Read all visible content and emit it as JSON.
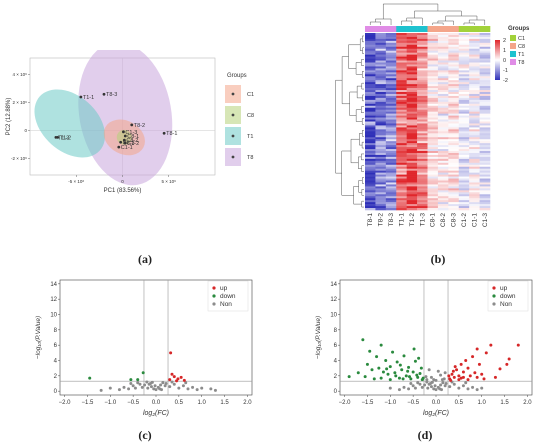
{
  "captions": {
    "a": "(a)",
    "b": "(b)",
    "c": "(c)",
    "d": "(d)"
  },
  "chart_data": [
    {
      "id": "pca",
      "type": "scatter",
      "title": "",
      "xlabel": "PC1 (83.56%)",
      "ylabel": "PC2 (12.88%)",
      "xlim": [
        -1.0,
        1.0
      ],
      "ylim": [
        -3.2,
        5.2
      ],
      "xtick_labels": [
        "-5 × 10⁶",
        "0",
        "5 × 10⁶"
      ],
      "xtick_values": [
        -0.5,
        0,
        0.5
      ],
      "ytick_labels": [
        "-2 × 10⁶",
        "0",
        "2 × 10⁶",
        "4 × 10⁶"
      ],
      "ytick_values": [
        -2,
        0,
        2,
        4
      ],
      "legend_title": "Groups",
      "legend_position": "right",
      "series": [
        {
          "name": "C1",
          "color": "#f4a58a",
          "ellipse": {
            "cx": 0.02,
            "cy": -0.5,
            "rx": 0.18,
            "ry": 1.55,
            "angle": 62
          },
          "points": [
            {
              "x": 0.01,
              "y": -0.1,
              "label": "C1-3"
            },
            {
              "x": -0.04,
              "y": -1.2,
              "label": "C1-1"
            },
            {
              "x": 0.03,
              "y": -0.9,
              "label": "C1-2"
            }
          ]
        },
        {
          "name": "C8",
          "color": "#b7d27a",
          "ellipse": {
            "cx": 0.02,
            "cy": -0.5,
            "rx": 0.08,
            "ry": 0.55,
            "angle": 55
          },
          "points": [
            {
              "x": 0.03,
              "y": -0.4,
              "label": "C8-1"
            },
            {
              "x": 0.02,
              "y": -0.7,
              "label": "C8-2"
            },
            {
              "x": -0.02,
              "y": -0.85,
              "label": "C8-3"
            }
          ]
        },
        {
          "name": "T1",
          "color": "#6dcac6",
          "ellipse": {
            "cx": -0.57,
            "cy": 0.5,
            "rx": 0.3,
            "ry": 2.9,
            "angle": 48
          },
          "points": [
            {
              "x": -0.45,
              "y": 2.4,
              "label": "T1-1"
            },
            {
              "x": -0.7,
              "y": -0.5,
              "label": "T1-2"
            },
            {
              "x": -0.72,
              "y": -0.5,
              "label": "T1-3"
            }
          ]
        },
        {
          "name": "T8",
          "color": "#c9a6dd",
          "ellipse": {
            "cx": 0.03,
            "cy": 1.2,
            "rx": 0.78,
            "ry": 3.3,
            "angle": -80
          },
          "points": [
            {
              "x": -0.2,
              "y": 2.6,
              "label": "T8-3"
            },
            {
              "x": 0.1,
              "y": 0.4,
              "label": "T8-2"
            },
            {
              "x": 0.45,
              "y": -0.2,
              "label": "T8-1"
            }
          ]
        }
      ]
    },
    {
      "id": "heatmap",
      "type": "heatmap",
      "title": "",
      "columns": [
        "T8-1",
        "T8-2",
        "T8-3",
        "T1-1",
        "T1-2",
        "T1-3",
        "C8-1",
        "C8-2",
        "C8-3",
        "C1-2",
        "C1-1",
        "C1-3"
      ],
      "col_groups": [
        "T8",
        "T8",
        "T8",
        "T1",
        "T1",
        "T1",
        "C8",
        "C8",
        "C8",
        "C1",
        "C1",
        "C1"
      ],
      "group_colors": {
        "C1": "#a2d23a",
        "C8": "#f4a58a",
        "T1": "#1ec2cf",
        "T8": "#e08ce6"
      },
      "legend_title": "Groups",
      "legend_groups": [
        "C1",
        "C8",
        "T1",
        "T8"
      ],
      "colorbar_ticks": [
        "2",
        "1",
        "0",
        "-1",
        "-2"
      ],
      "colorbar_values": [
        2,
        1,
        0,
        -1,
        -2
      ],
      "color_low": "#2e2fb8",
      "color_mid": "#ffffff",
      "color_high": "#e0262b",
      "column_mean_pattern": [
        -1.6,
        -1.3,
        -1.1,
        1.5,
        1.8,
        1.2,
        0.3,
        0.1,
        0.2,
        -0.2,
        0.0,
        -0.3
      ],
      "row_count": 90
    },
    {
      "id": "volcano-c",
      "type": "scatter",
      "title": "",
      "xlabel": "log₂(FC)",
      "ylabel": "−log₁₀(P.Value)",
      "xlim": [
        -2.1,
        2.1
      ],
      "ylim": [
        -0.5,
        14.5
      ],
      "xtick_values": [
        -2.0,
        -1.5,
        -1.0,
        -0.5,
        0.0,
        0.5,
        1.0,
        1.5,
        2.0
      ],
      "xtick_labels": [
        "−2.0",
        "−1.5",
        "−1.0",
        "−0.5",
        "0.0",
        "0.5",
        "1.0",
        "1.5",
        "2.0"
      ],
      "ytick_values": [
        0,
        2,
        4,
        6,
        8,
        10,
        12,
        14
      ],
      "ytick_labels": [
        "0",
        "2",
        "4",
        "6",
        "8",
        "10",
        "12",
        "14"
      ],
      "vlines": [
        -0.263,
        0.263
      ],
      "hline": 1.3,
      "legend_position": "top-right",
      "series": [
        {
          "name": "up",
          "color": "#d62728",
          "points": [
            [
              0.32,
              5.0
            ],
            [
              0.35,
              2.2
            ],
            [
              0.4,
              1.9
            ],
            [
              0.48,
              1.6
            ],
            [
              0.55,
              1.8
            ],
            [
              0.3,
              1.5
            ],
            [
              0.62,
              1.4
            ],
            [
              0.45,
              1.35
            ]
          ]
        },
        {
          "name": "down",
          "color": "#2a8a3e",
          "points": [
            [
              -1.45,
              1.7
            ],
            [
              -0.28,
              2.4
            ],
            [
              -0.55,
              1.5
            ],
            [
              -0.4,
              1.5
            ]
          ]
        },
        {
          "name": "Non",
          "color": "#8c8c8c",
          "points": [
            [
              -0.2,
              1.2
            ],
            [
              -0.15,
              0.9
            ],
            [
              -0.1,
              0.6
            ],
            [
              -0.05,
              0.3
            ],
            [
              0.0,
              0.2
            ],
            [
              0.05,
              0.5
            ],
            [
              0.1,
              0.8
            ],
            [
              0.15,
              1.1
            ],
            [
              0.2,
              0.7
            ],
            [
              -0.25,
              0.8
            ],
            [
              -0.3,
              0.5
            ],
            [
              -0.35,
              0.9
            ],
            [
              -0.45,
              0.4
            ],
            [
              -0.5,
              0.7
            ],
            [
              -0.6,
              0.3
            ],
            [
              -0.7,
              0.5
            ],
            [
              -0.8,
              0.2
            ],
            [
              -1.0,
              0.4
            ],
            [
              -1.2,
              0.1
            ],
            [
              0.3,
              0.6
            ],
            [
              0.4,
              0.9
            ],
            [
              0.5,
              0.4
            ],
            [
              0.6,
              0.7
            ],
            [
              0.7,
              0.3
            ],
            [
              0.8,
              0.5
            ],
            [
              0.9,
              0.2
            ],
            [
              1.0,
              0.4
            ],
            [
              1.2,
              0.3
            ],
            [
              1.3,
              0.1
            ],
            [
              -0.12,
              1.0
            ],
            [
              0.08,
              0.3
            ],
            [
              -0.08,
              1.15
            ],
            [
              0.22,
              1.0
            ],
            [
              -0.18,
              0.4
            ],
            [
              0.12,
              0.2
            ],
            [
              0.35,
              1.2
            ],
            [
              -0.4,
              1.1
            ],
            [
              -0.55,
              1.0
            ],
            [
              0.65,
              1.1
            ],
            [
              -0.02,
              0.7
            ]
          ]
        }
      ]
    },
    {
      "id": "volcano-d",
      "type": "scatter",
      "title": "",
      "xlabel": "log₂(FC)",
      "ylabel": "−log₁₀(P.Value)",
      "xlim": [
        -2.1,
        2.1
      ],
      "ylim": [
        -0.5,
        14.5
      ],
      "xtick_values": [
        -2.0,
        -1.5,
        -1.0,
        -0.5,
        0.0,
        0.5,
        1.0,
        1.5,
        2.0
      ],
      "xtick_labels": [
        "−2.0",
        "−1.5",
        "−1.0",
        "−0.5",
        "0.0",
        "0.5",
        "1.0",
        "1.5",
        "2.0"
      ],
      "ytick_values": [
        0,
        2,
        4,
        6,
        8,
        10,
        12,
        14
      ],
      "ytick_labels": [
        "0",
        "2",
        "4",
        "6",
        "8",
        "10",
        "12",
        "14"
      ],
      "vlines": [
        -0.263,
        0.263
      ],
      "hline": 1.3,
      "legend_position": "top-right",
      "series": [
        {
          "name": "up",
          "color": "#d62728",
          "points": [
            [
              1.8,
              6.0
            ],
            [
              1.6,
              4.2
            ],
            [
              1.55,
              3.5
            ],
            [
              1.2,
              6.0
            ],
            [
              1.1,
              5.0
            ],
            [
              0.9,
              5.5
            ],
            [
              0.95,
              3.5
            ],
            [
              0.8,
              4.5
            ],
            [
              0.7,
              3.0
            ],
            [
              0.65,
              4.0
            ],
            [
              0.6,
              2.5
            ],
            [
              0.55,
              3.5
            ],
            [
              0.5,
              2.0
            ],
            [
              0.45,
              2.8
            ],
            [
              0.4,
              1.8
            ],
            [
              0.35,
              2.2
            ],
            [
              0.3,
              1.6
            ],
            [
              0.28,
              2.0
            ],
            [
              0.32,
              1.4
            ],
            [
              0.5,
              1.5
            ],
            [
              0.6,
              1.8
            ],
            [
              0.75,
              2.0
            ],
            [
              0.85,
              2.4
            ],
            [
              1.0,
              2.2
            ],
            [
              1.05,
              1.6
            ],
            [
              1.3,
              1.8
            ],
            [
              0.42,
              3.2
            ],
            [
              0.7,
              1.5
            ],
            [
              0.9,
              1.8
            ],
            [
              0.38,
              2.6
            ],
            [
              1.4,
              2.9
            ],
            [
              0.55,
              1.7
            ]
          ]
        },
        {
          "name": "down",
          "color": "#2a8a3e",
          "points": [
            [
              -1.9,
              1.9
            ],
            [
              -1.7,
              2.4
            ],
            [
              -1.6,
              6.7
            ],
            [
              -1.5,
              3.5
            ],
            [
              -1.45,
              5.2
            ],
            [
              -1.4,
              2.8
            ],
            [
              -1.3,
              4.5
            ],
            [
              -1.25,
              3.0
            ],
            [
              -1.2,
              6.0
            ],
            [
              -1.15,
              2.5
            ],
            [
              -1.1,
              4.0
            ],
            [
              -1.05,
              2.2
            ],
            [
              -1.0,
              3.2
            ],
            [
              -0.95,
              5.1
            ],
            [
              -0.9,
              2.4
            ],
            [
              -0.85,
              3.8
            ],
            [
              -0.8,
              1.7
            ],
            [
              -0.75,
              2.8
            ],
            [
              -0.7,
              4.6
            ],
            [
              -0.65,
              2.0
            ],
            [
              -0.6,
              3.1
            ],
            [
              -0.55,
              1.6
            ],
            [
              -0.5,
              2.5
            ],
            [
              -0.45,
              3.9
            ],
            [
              -0.4,
              1.8
            ],
            [
              -0.35,
              2.3
            ],
            [
              -0.3,
              1.5
            ],
            [
              -0.32,
              3.0
            ],
            [
              -0.42,
              2.1
            ],
            [
              -0.58,
              1.9
            ],
            [
              -0.72,
              1.6
            ],
            [
              -0.88,
              2.0
            ],
            [
              -1.0,
              1.5
            ],
            [
              -1.2,
              1.7
            ],
            [
              -1.35,
              1.6
            ],
            [
              -1.55,
              1.9
            ],
            [
              -0.48,
              5.5
            ],
            [
              -0.62,
              2.6
            ],
            [
              -0.78,
              3.4
            ],
            [
              -0.38,
              4.3
            ],
            [
              -1.08,
              2.9
            ],
            [
              -0.28,
              1.7
            ]
          ]
        },
        {
          "name": "Non",
          "color": "#8c8c8c",
          "points": [
            [
              -0.2,
              1.2
            ],
            [
              -0.15,
              0.9
            ],
            [
              -0.1,
              0.6
            ],
            [
              -0.05,
              0.3
            ],
            [
              0.0,
              0.2
            ],
            [
              0.05,
              0.5
            ],
            [
              0.1,
              0.8
            ],
            [
              0.15,
              1.1
            ],
            [
              0.2,
              0.7
            ],
            [
              -0.25,
              0.8
            ],
            [
              -0.3,
              0.5
            ],
            [
              -0.35,
              0.9
            ],
            [
              -0.45,
              0.4
            ],
            [
              -0.5,
              0.7
            ],
            [
              -0.6,
              0.3
            ],
            [
              -0.7,
              0.5
            ],
            [
              -0.8,
              0.2
            ],
            [
              -1.0,
              0.4
            ],
            [
              0.3,
              0.6
            ],
            [
              0.4,
              0.9
            ],
            [
              0.5,
              0.4
            ],
            [
              0.6,
              0.7
            ],
            [
              0.7,
              0.3
            ],
            [
              0.8,
              0.5
            ],
            [
              0.9,
              0.2
            ],
            [
              1.0,
              0.4
            ],
            [
              -0.12,
              1.0
            ],
            [
              0.08,
              0.3
            ],
            [
              -0.08,
              1.15
            ],
            [
              0.22,
              1.0
            ],
            [
              -0.18,
              0.4
            ],
            [
              0.12,
              0.2
            ],
            [
              0.35,
              1.2
            ],
            [
              -0.4,
              1.1
            ],
            [
              -0.55,
              1.0
            ],
            [
              0.65,
              1.1
            ],
            [
              -0.02,
              0.7
            ],
            [
              0.18,
              1.6
            ],
            [
              -0.22,
              1.9
            ],
            [
              0.1,
              2.1
            ],
            [
              -0.1,
              1.8
            ],
            [
              0.05,
              2.6
            ],
            [
              -0.05,
              1.5
            ],
            [
              0.2,
              2.4
            ],
            [
              -0.15,
              2.8
            ],
            [
              0.0,
              1.4
            ],
            [
              0.14,
              1.5
            ],
            [
              -0.2,
              1.5
            ]
          ]
        }
      ]
    }
  ]
}
